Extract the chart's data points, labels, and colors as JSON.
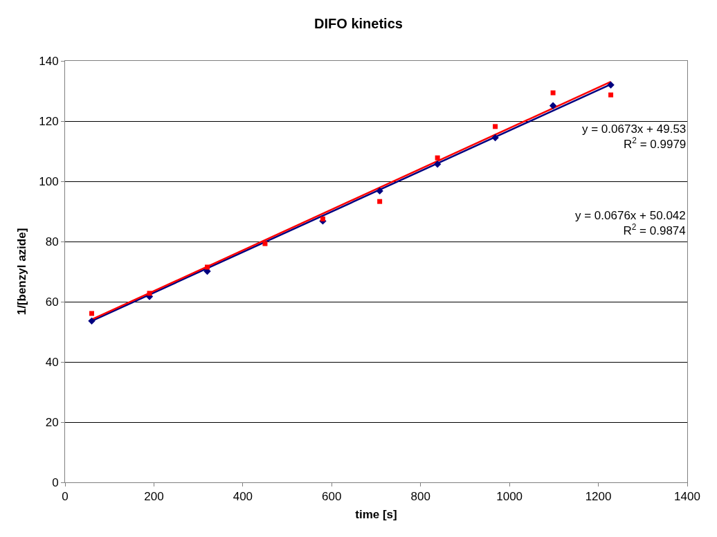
{
  "chart_data": {
    "type": "scatter",
    "title": "DIFO kinetics",
    "xlabel": "time [s]",
    "ylabel": "1/[benzyl azide]",
    "series": [
      {
        "color": "#000080",
        "marker": "diamond",
        "x": [
          60,
          190,
          320,
          450,
          580,
          708,
          838,
          968,
          1098,
          1228
        ],
        "values": [
          53.6,
          61.7,
          70.1,
          null,
          86.8,
          96.8,
          105.7,
          114.5,
          125.1,
          132.0
        ]
      },
      {
        "color": "#ff0000",
        "marker": "square",
        "x": [
          60,
          190,
          320,
          450,
          580,
          708,
          838,
          968,
          1098,
          1228
        ],
        "values": [
          56.1,
          62.8,
          71.5,
          79.3,
          87.5,
          93.3,
          107.8,
          118.2,
          129.4,
          128.7
        ]
      },
      {
        "type": "line",
        "color": "#000080",
        "x": [
          60,
          1228
        ],
        "values": [
          53.6,
          132.2
        ]
      },
      {
        "type": "line",
        "color": "#ff0000",
        "x": [
          60,
          1228
        ],
        "values": [
          54.1,
          133.1
        ]
      }
    ],
    "annotations": [
      "y = 0.0673x + 49.53\nR$^{2}$ = 0.9979",
      "y = 0.0676x + 50.042\nR$^{2}$ = 0.9874"
    ],
    "xlim": [
      0,
      1400
    ],
    "xticks": [
      0,
      200,
      400,
      600,
      800,
      1000,
      1200,
      1400
    ],
    "ylim": [
      0,
      140
    ],
    "yticks": [
      0,
      20,
      40,
      60,
      80,
      100,
      120,
      140
    ],
    "grid": "y"
  }
}
